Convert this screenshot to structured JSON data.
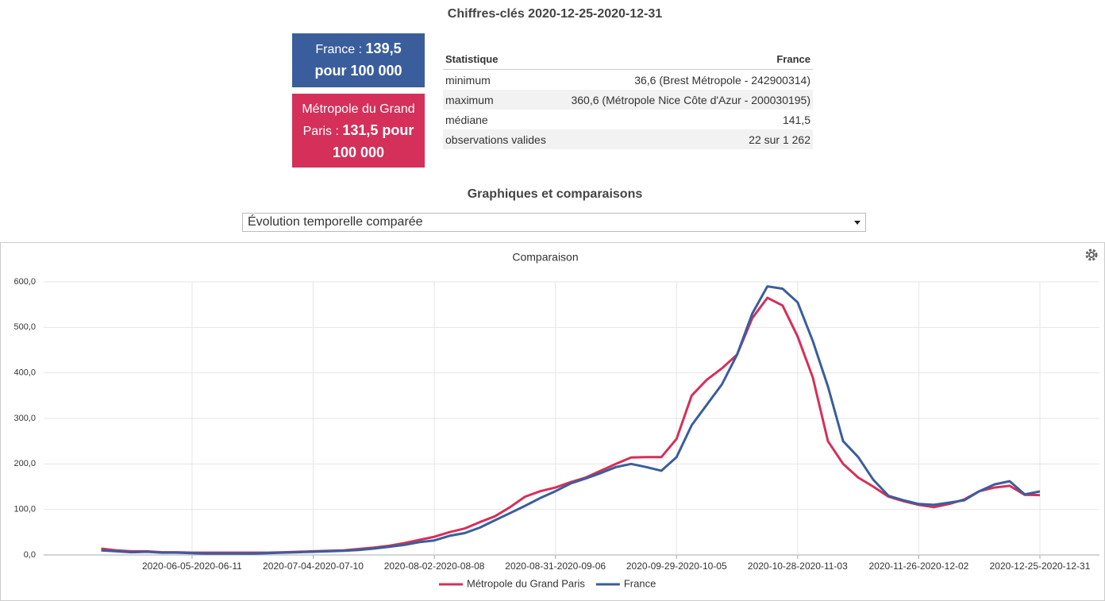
{
  "header": {
    "title": "Chiffres-clés 2020-12-25-2020-12-31"
  },
  "cards": [
    {
      "name": "France :",
      "value": "139,5 pour 100 000"
    },
    {
      "name": "Métropole du Grand Paris :",
      "value": "131,5 pour 100 000"
    }
  ],
  "table": {
    "header": [
      "Statistique",
      "France"
    ],
    "rows": [
      [
        "minimum",
        "36,6 (Brest Métropole - 242900314)"
      ],
      [
        "maximum",
        "360,6 (Métropole Nice Côte d'Azur - 200030195)"
      ],
      [
        "médiane",
        "141,5"
      ],
      [
        "observations valides",
        "22 sur 1 262"
      ]
    ]
  },
  "section": {
    "title": "Graphiques et comparaisons"
  },
  "select": {
    "value": "Évolution temporelle comparée"
  },
  "chart_data": {
    "type": "line",
    "title": "Comparaison",
    "categories": [
      null,
      null,
      null,
      null,
      null,
      null,
      "2020-06-05-2020-06-11",
      null,
      null,
      null,
      null,
      null,
      null,
      null,
      "2020-07-04-2020-07-10",
      null,
      null,
      null,
      null,
      null,
      null,
      null,
      "2020-08-02-2020-08-08",
      null,
      null,
      null,
      null,
      null,
      null,
      null,
      "2020-08-31-2020-09-06",
      null,
      null,
      null,
      null,
      null,
      null,
      null,
      "2020-09-29-2020-10-05",
      null,
      null,
      null,
      null,
      null,
      null,
      null,
      "2020-10-28-2020-11-03",
      null,
      null,
      null,
      null,
      null,
      null,
      null,
      "2020-11-26-2020-12-02",
      null,
      null,
      null,
      null,
      null,
      null,
      null,
      "2020-12-25-2020-12-31"
    ],
    "series": [
      {
        "name": "Métropole du Grand Paris",
        "color": "#d4305a",
        "values": [
          14,
          10,
          8,
          8,
          6,
          6,
          5,
          5,
          5,
          5,
          5,
          5,
          6,
          7,
          8,
          9,
          10,
          13,
          16,
          20,
          26,
          33,
          40,
          50,
          58,
          72,
          85,
          105,
          128,
          140,
          148,
          160,
          170,
          185,
          200,
          214,
          215,
          215,
          255,
          350,
          385,
          410,
          440,
          520,
          565,
          548,
          480,
          390,
          250,
          200,
          170,
          150,
          128,
          118,
          110,
          105,
          112,
          122,
          140,
          148,
          152,
          132,
          131.5
        ]
      },
      {
        "name": "France",
        "color": "#3a5e9c",
        "values": [
          10,
          8,
          6,
          7,
          5,
          5,
          4,
          3,
          3,
          3,
          3,
          4,
          5,
          6,
          7,
          8,
          9,
          11,
          14,
          18,
          22,
          28,
          32,
          42,
          48,
          60,
          76,
          92,
          108,
          125,
          140,
          157,
          168,
          180,
          193,
          200,
          193,
          185,
          215,
          285,
          330,
          375,
          440,
          530,
          590,
          585,
          555,
          470,
          370,
          250,
          215,
          165,
          130,
          120,
          112,
          110,
          115,
          120,
          140,
          155,
          162,
          133,
          139.5
        ]
      }
    ],
    "ylim": [
      0,
      600
    ],
    "yticks": [
      {
        "value": 0,
        "label": "0,0"
      },
      {
        "value": 100,
        "label": "100,0"
      },
      {
        "value": 200,
        "label": "200,0"
      },
      {
        "value": 300,
        "label": "300,0"
      },
      {
        "value": 400,
        "label": "400,0"
      },
      {
        "value": 500,
        "label": "500,0"
      },
      {
        "value": 600,
        "label": "600,0"
      }
    ],
    "grid": true,
    "legend": "bottom"
  }
}
